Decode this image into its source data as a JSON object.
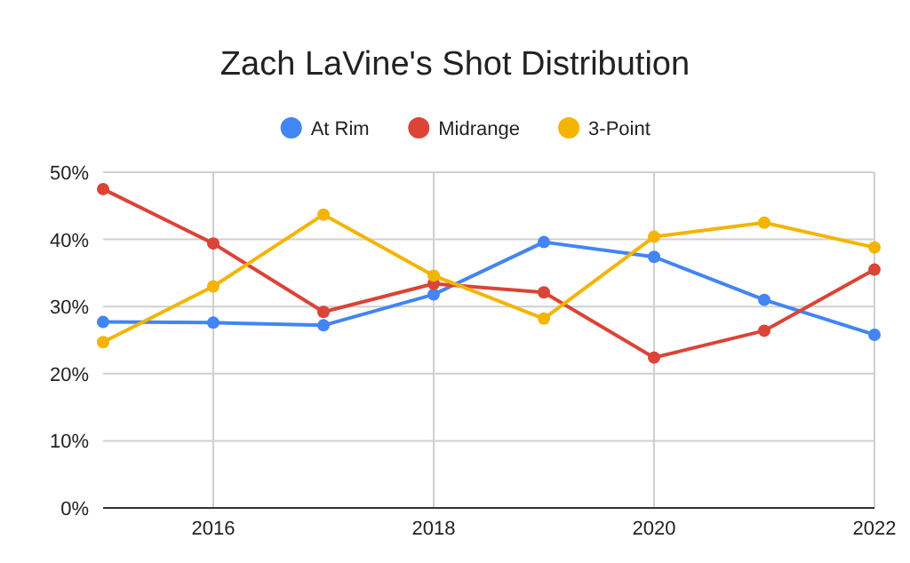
{
  "chart_data": {
    "type": "line",
    "title": "Zach LaVine's Shot Distribution",
    "x": [
      2015,
      2016,
      2017,
      2018,
      2019,
      2020,
      2021,
      2022
    ],
    "xlim": [
      2015,
      2022
    ],
    "xticks": [
      2016,
      2018,
      2020,
      2022
    ],
    "ylim": [
      0,
      50
    ],
    "yticks": [
      {
        "value": 0,
        "label": "0%"
      },
      {
        "value": 10,
        "label": "10%"
      },
      {
        "value": 20,
        "label": "20%"
      },
      {
        "value": 30,
        "label": "30%"
      },
      {
        "value": 40,
        "label": "40%"
      },
      {
        "value": 50,
        "label": "50%"
      }
    ],
    "grid": true,
    "legend": "top",
    "marker": "circle",
    "series": [
      {
        "name": "At Rim",
        "color": "#4285f4",
        "values": [
          27.7,
          27.6,
          27.2,
          31.8,
          39.6,
          37.4,
          31.0,
          25.8
        ]
      },
      {
        "name": "Midrange",
        "color": "#db4437",
        "values": [
          47.5,
          39.4,
          29.2,
          33.4,
          32.1,
          22.4,
          26.4,
          35.5
        ]
      },
      {
        "name": "3-Point",
        "color": "#f4b400",
        "values": [
          24.7,
          33.0,
          43.7,
          34.6,
          28.2,
          40.4,
          42.5,
          38.8
        ]
      }
    ]
  }
}
